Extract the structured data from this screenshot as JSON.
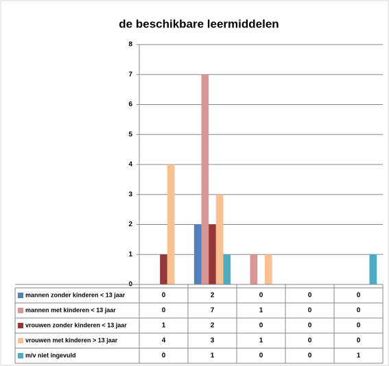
{
  "chart_data": {
    "type": "bar",
    "title": "de beschikbare leermiddelen",
    "categories": [
      null,
      null,
      null,
      null,
      null
    ],
    "series": [
      {
        "name": "mannen  zonder kinderen < 13 jaar",
        "color": "#4f81bd",
        "values": [
          0,
          2,
          0,
          0,
          0
        ]
      },
      {
        "name": "mannen  met kinderen < 13 jaar",
        "color": "#d99694",
        "values": [
          0,
          7,
          1,
          0,
          0
        ]
      },
      {
        "name": "vrouwen zonder kinderen < 13 jaar",
        "color": "#953735",
        "values": [
          1,
          2,
          0,
          0,
          0
        ]
      },
      {
        "name": "vrouwen met kinderen > 13 jaar",
        "color": "#fac090",
        "values": [
          4,
          3,
          1,
          0,
          0
        ]
      },
      {
        "name": "m/v niet ingevuld",
        "color": "#4bacc6",
        "values": [
          0,
          1,
          0,
          0,
          1
        ]
      }
    ],
    "ylim": [
      0,
      8
    ],
    "yticks": [
      0,
      1,
      2,
      3,
      4,
      5,
      6,
      7,
      8
    ],
    "grid": true,
    "data_table": true
  }
}
